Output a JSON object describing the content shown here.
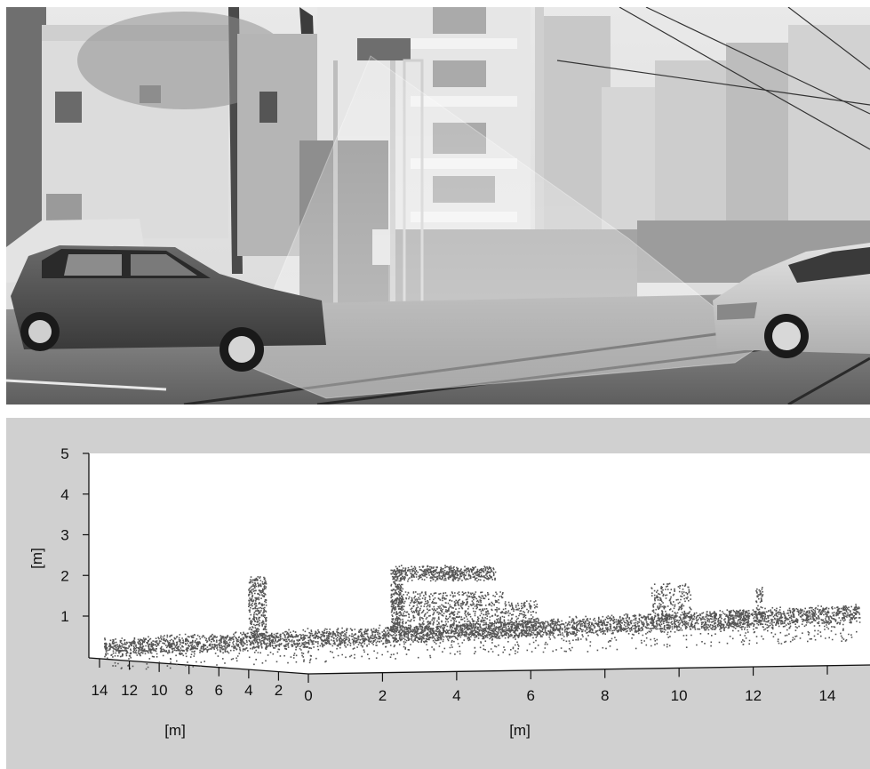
{
  "photo": {
    "description_icon": "street-scene-photo"
  },
  "plot": {
    "y_ticks": [
      "1",
      "2",
      "3",
      "4",
      "5"
    ],
    "y_unit": "[m]",
    "left_ticks": [
      "14",
      "12",
      "10",
      "8",
      "6",
      "4",
      "2"
    ],
    "left_unit": "[m]",
    "bottom_ticks": [
      "0",
      "2",
      "4",
      "6",
      "8",
      "10",
      "12",
      "14"
    ],
    "bottom_unit": "[m]"
  },
  "colors": {
    "plot_bg": "#d0d0d0",
    "plot_area": "#ffffff",
    "points": "#555555"
  }
}
